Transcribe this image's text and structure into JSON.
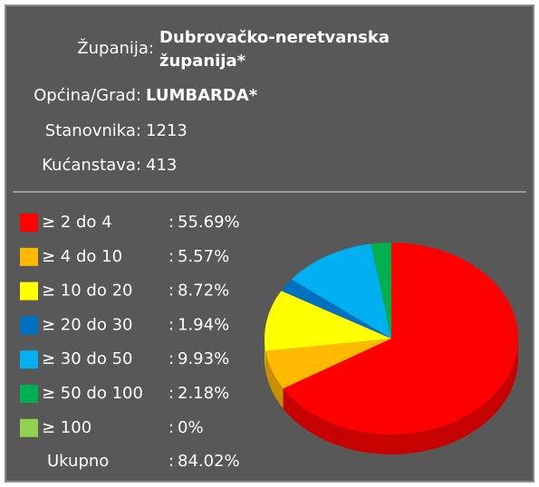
{
  "info": {
    "county_label": "Županija:",
    "county_value": [
      "Dubrovačko-neretvanska",
      "županija*"
    ],
    "municipality_label": "Općina/Grad:",
    "municipality_value": "LUMBARDA*",
    "population_label": "Stanovnika:",
    "population": 1213,
    "households_label": "Kućanstava:",
    "households": 413,
    "total_label": "Ukupno",
    "total_value_label": "84.02%"
  },
  "chart_data": {
    "type": "pie",
    "categories": [
      "≥ 2 do 4",
      "≥ 4 do 10",
      "≥ 10 do 20",
      "≥ 20 do 30",
      "≥ 30 do 50",
      "≥ 50 do 100",
      "≥ 100"
    ],
    "values": [
      55.69,
      5.57,
      8.72,
      1.94,
      9.93,
      2.18,
      0
    ],
    "value_labels": [
      "55.69%",
      "5.57%",
      "8.72%",
      "1.94%",
      "9.93%",
      "2.18%",
      "0%"
    ],
    "colors": [
      "#ff0000",
      "#ffb900",
      "#ffff00",
      "#0070c0",
      "#00b0f0",
      "#00b050",
      "#92d050"
    ]
  }
}
